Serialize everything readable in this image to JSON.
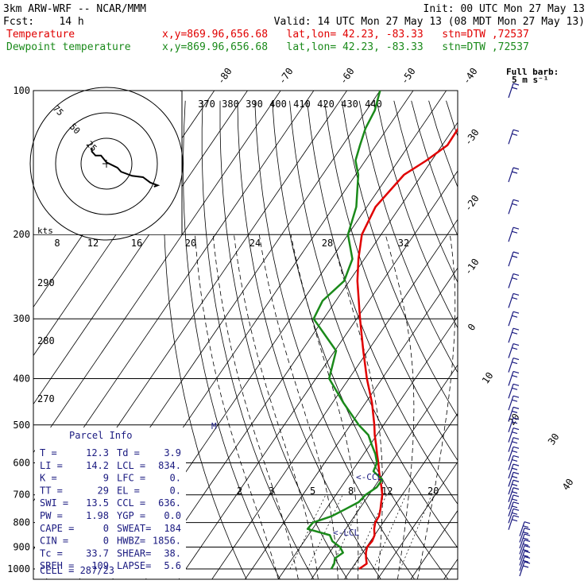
{
  "header": {
    "title": "3km ARW-WRF -- NCAR/MMM",
    "init": "Init: 00 UTC Mon 27 May 13",
    "fcst": "Fcst:    14 h",
    "valid": "Valid: 14 UTC Mon 27 May 13 (08 MDT Mon 27 May 13)",
    "temp_label": "Temperature",
    "dew_label": "Dewpoint temperature",
    "loc_temp": "x,y=869.96,656.68   lat,lon= 42.23, -83.33   stn=DTW ,72537",
    "loc_dew": "x,y=869.96,656.68   lat,lon= 42.23, -83.33   stn=DTW ,72537"
  },
  "colors": {
    "temperature": "#e00000",
    "dewpoint": "#1a8a1a",
    "barbs": "#1a1a80",
    "text_navy": "#1a1a80"
  },
  "barb_legend": {
    "line1": "Full barb:",
    "line2": "5 m s⁻¹"
  },
  "hodograph": {
    "units": "kts",
    "ring_labels": [
      "75",
      "50",
      "25"
    ],
    "speed_labels": [
      "8",
      "12",
      "16",
      "20",
      "24",
      "28",
      "32"
    ],
    "trace_uv": [
      [
        -8,
        12
      ],
      [
        -8,
        9
      ],
      [
        -6,
        6
      ],
      [
        -3,
        6
      ],
      [
        0,
        1
      ],
      [
        3,
        -1
      ],
      [
        6,
        -3
      ],
      [
        8,
        -6
      ],
      [
        14,
        -9
      ],
      [
        20,
        -10
      ],
      [
        24,
        -14
      ],
      [
        28,
        -16
      ],
      [
        26,
        -17
      ]
    ]
  },
  "pressure_ticks": [
    "100",
    "200",
    "300",
    "400",
    "500",
    "600",
    "700",
    "800",
    "900",
    "1000"
  ],
  "theta_labels": [
    "370",
    "380",
    "390",
    "400",
    "410",
    "420",
    "430",
    "440"
  ],
  "isotherm_labels": [
    "-80",
    "-70",
    "-60",
    "-50",
    "-40",
    "-30",
    "-20",
    "-10",
    "0",
    "10",
    "20",
    "30",
    "40"
  ],
  "theta_left_labels": [
    "290",
    "280",
    "270"
  ],
  "mixing_ratio_labels": [
    "2",
    "3",
    "5",
    "8",
    "12",
    "20"
  ],
  "markers": {
    "ccl": "<-CCL",
    "lcl": "<-LCL",
    "m": "M"
  },
  "parcel": {
    "title": "Parcel Info",
    "rows": [
      {
        "a": "T  =",
        "av": "12.3",
        "b": "Td =",
        "bv": "3.9"
      },
      {
        "a": "LI =",
        "av": "14.2",
        "b": "LCL =",
        "bv": "834."
      },
      {
        "a": "K  =",
        "av": "9",
        "b": "LFC =",
        "bv": "0."
      },
      {
        "a": "TT =",
        "av": "29",
        "b": "EL  =",
        "bv": "0."
      },
      {
        "a": "SWI =",
        "av": "13.5",
        "b": "CCL =",
        "bv": "636."
      },
      {
        "a": "PW =",
        "av": "1.98",
        "b": "YGP =",
        "bv": "0.0"
      },
      {
        "a": "CAPE =",
        "av": "0",
        "b": "SWEAT=",
        "bv": "184"
      },
      {
        "a": "CIN =",
        "av": "0",
        "b": "HWBZ=",
        "bv": "1856."
      },
      {
        "a": "Tc =",
        "av": "33.7",
        "b": "SHEAR=",
        "bv": "38."
      },
      {
        "a": "SREH =",
        "av": "109",
        "b": "LAPSE=",
        "bv": "5.6"
      }
    ],
    "cell": "CELL = 287/23"
  },
  "chart_data": {
    "type": "line",
    "title": "",
    "xlabel": "",
    "ylabel": "",
    "y_scale": "log-pressure",
    "ylim": [
      1000,
      100
    ],
    "series": [
      {
        "name": "Temperature",
        "color": "#e00000",
        "p": [
          1000,
          975,
          950,
          925,
          900,
          875,
          850,
          825,
          800,
          775,
          750,
          725,
          700,
          675,
          650,
          625,
          600,
          575,
          550,
          525,
          500,
          450,
          400,
          350,
          300,
          250,
          225,
          200,
          175,
          150,
          140,
          130,
          120,
          110,
          100
        ],
        "t": [
          12.3,
          13.5,
          12.2,
          11.0,
          10.2,
          10.5,
          10.0,
          8.6,
          7.6,
          7.4,
          6.4,
          5.2,
          4.0,
          2.2,
          0.2,
          -1.8,
          -3.8,
          -6.0,
          -8.2,
          -10.6,
          -12.8,
          -18.0,
          -24.6,
          -31.4,
          -39.0,
          -47.6,
          -51.8,
          -55.8,
          -57.4,
          -55.4,
          -51.6,
          -48.4,
          -48.6,
          -48.5,
          -48.6
        ]
      },
      {
        "name": "Dewpoint temperature",
        "color": "#1a8a1a",
        "p": [
          1000,
          975,
          950,
          925,
          900,
          875,
          850,
          825,
          800,
          775,
          750,
          725,
          700,
          675,
          650,
          625,
          600,
          575,
          550,
          525,
          500,
          450,
          400,
          350,
          300,
          275,
          250,
          225,
          200,
          175,
          150,
          140,
          130,
          120,
          110,
          100
        ],
        "t": [
          3.9,
          3.7,
          2.8,
          4.1,
          2.0,
          -1.5,
          -3.5,
          -11.5,
          -11.2,
          -6.8,
          -4.2,
          -1.6,
          -1.0,
          0.8,
          0.8,
          -3.5,
          -4.2,
          -6.5,
          -9.5,
          -12.5,
          -17.5,
          -26.6,
          -36.0,
          -39.6,
          -53.0,
          -54.0,
          -51.6,
          -53.6,
          -60.0,
          -63.2,
          -69.2,
          -73.0,
          -74.8,
          -76.6,
          -77.5,
          -80.0
        ]
      }
    ],
    "wind_barbs_p": [
      1000,
      975,
      950,
      925,
      900,
      875,
      850,
      825,
      800,
      775,
      750,
      725,
      700,
      675,
      650,
      625,
      600,
      575,
      550,
      525,
      500,
      475,
      450,
      425,
      400,
      375,
      350,
      325,
      300,
      275,
      250,
      225,
      200,
      175,
      150,
      125,
      100
    ]
  }
}
